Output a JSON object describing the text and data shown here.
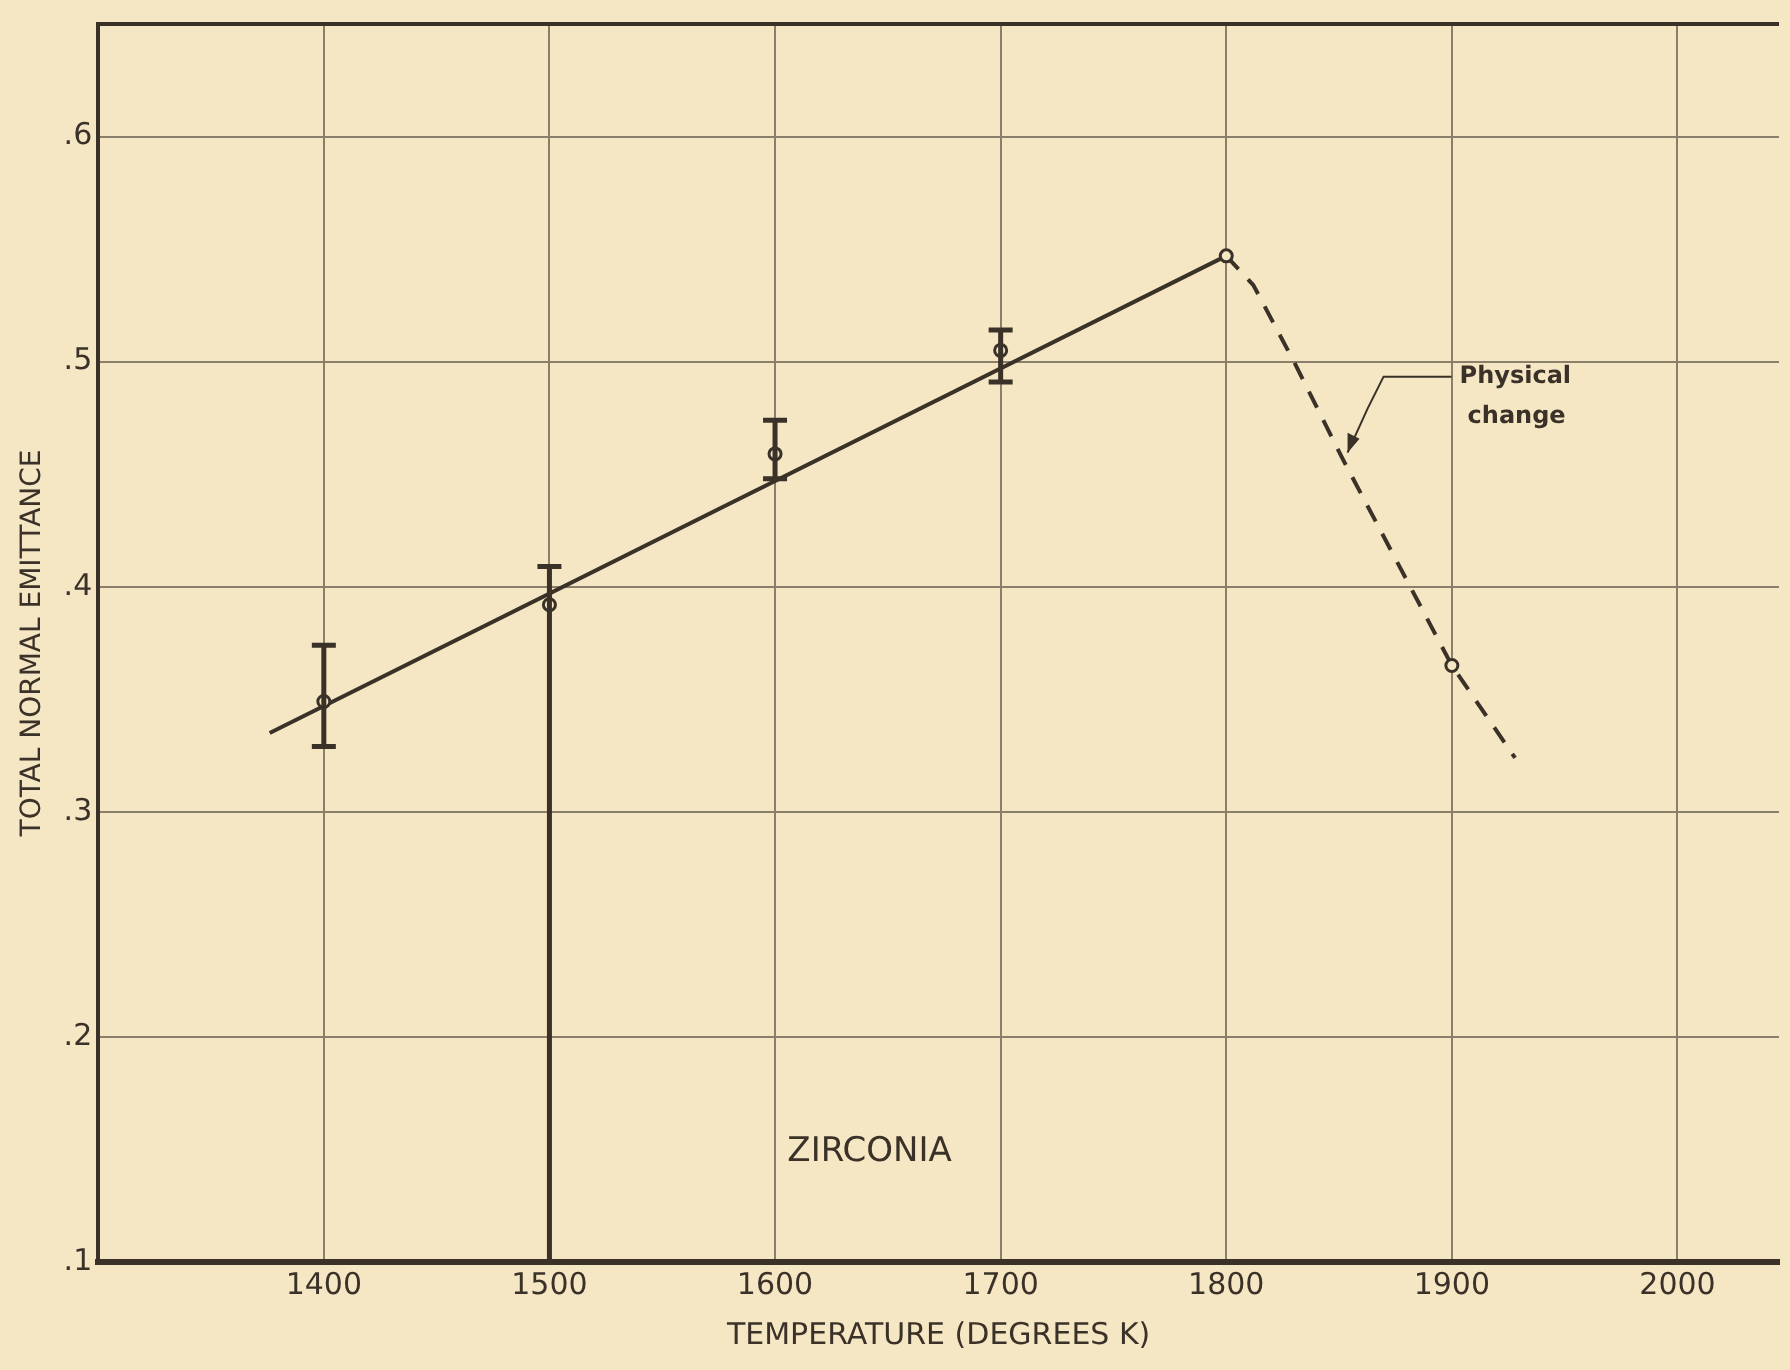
{
  "chart_data": {
    "type": "scatter",
    "xlabel": "TEMPERATURE (DEGREES K)",
    "ylabel": "TOTAL NORMAL EMITTANCE",
    "xlim": [
      1300,
      2045
    ],
    "ylim": [
      0.1,
      0.65
    ],
    "xticks": [
      1400,
      1500,
      1600,
      1700,
      1800,
      1900,
      2000
    ],
    "yticks": [
      {
        "value": 0.1,
        "label": ".1"
      },
      {
        "value": 0.2,
        "label": ".2"
      },
      {
        "value": 0.3,
        "label": ".3"
      },
      {
        "value": 0.4,
        "label": ".4"
      },
      {
        "value": 0.5,
        "label": ".5"
      },
      {
        "value": 0.6,
        "label": ".6"
      }
    ],
    "grid": true,
    "legend": false,
    "series": [
      {
        "color": "#3a3228",
        "marker": "circle",
        "x": [
          1400,
          1500,
          1600,
          1700,
          1800,
          1900
        ],
        "values": [
          0.349,
          0.392,
          0.459,
          0.505,
          0.547,
          0.365
        ],
        "errors": [
          [
            0.329,
            0.374
          ],
          [
            0.1,
            0.409
          ],
          [
            0.448,
            0.474
          ],
          [
            0.491,
            0.514
          ],
          null,
          null
        ]
      },
      {
        "type": "line",
        "color": "#3a3228",
        "marker": "none",
        "line_style": "solid",
        "x": [
          1376,
          1800
        ],
        "values": [
          0.335,
          0.547
        ]
      },
      {
        "type": "line",
        "color": "#3a3228",
        "marker": "none",
        "line_style": "dashed",
        "x": [
          1800,
          1812,
          1830,
          1852,
          1900,
          1928
        ],
        "values": [
          0.547,
          0.534,
          0.5,
          0.456,
          0.365,
          0.324
        ]
      }
    ],
    "annotations": [
      {
        "text": "Physical change",
        "x": 1852,
        "y": 0.456
      },
      "ZIRCONIA"
    ]
  }
}
